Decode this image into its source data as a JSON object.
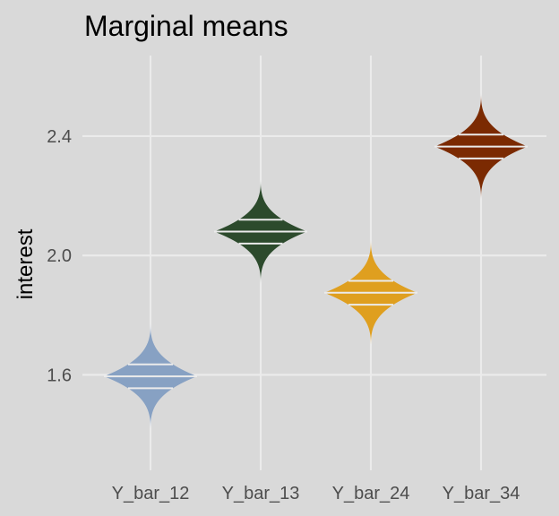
{
  "chart_data": {
    "type": "violin",
    "title": "Marginal means",
    "xlabel": "",
    "ylabel": "interest",
    "categories": [
      "Y_bar_12",
      "Y_bar_13",
      "Y_bar_24",
      "Y_bar_34"
    ],
    "y_ticks": [
      1.6,
      2.0,
      2.4
    ],
    "y_tick_labels": [
      "1.6",
      "2.0",
      "2.4"
    ],
    "ylim": [
      1.28,
      2.67
    ],
    "grid": true,
    "legend": "none",
    "series": [
      {
        "category": "Y_bar_12",
        "color": "#87a1c3",
        "min": 1.42,
        "max": 1.78,
        "mode": 1.595,
        "quantiles": [
          1.555,
          1.595,
          1.635
        ]
      },
      {
        "category": "Y_bar_13",
        "color": "#2c4a2c",
        "min": 1.9,
        "max": 2.26,
        "mode": 2.08,
        "quantiles": [
          2.04,
          2.08,
          2.12
        ]
      },
      {
        "category": "Y_bar_24",
        "color": "#df9f1f",
        "min": 1.69,
        "max": 2.05,
        "mode": 1.875,
        "quantiles": [
          1.835,
          1.875,
          1.915
        ]
      },
      {
        "category": "Y_bar_34",
        "color": "#7b2a02",
        "min": 2.19,
        "max": 2.55,
        "mode": 2.365,
        "quantiles": [
          2.325,
          2.365,
          2.405
        ]
      }
    ]
  }
}
